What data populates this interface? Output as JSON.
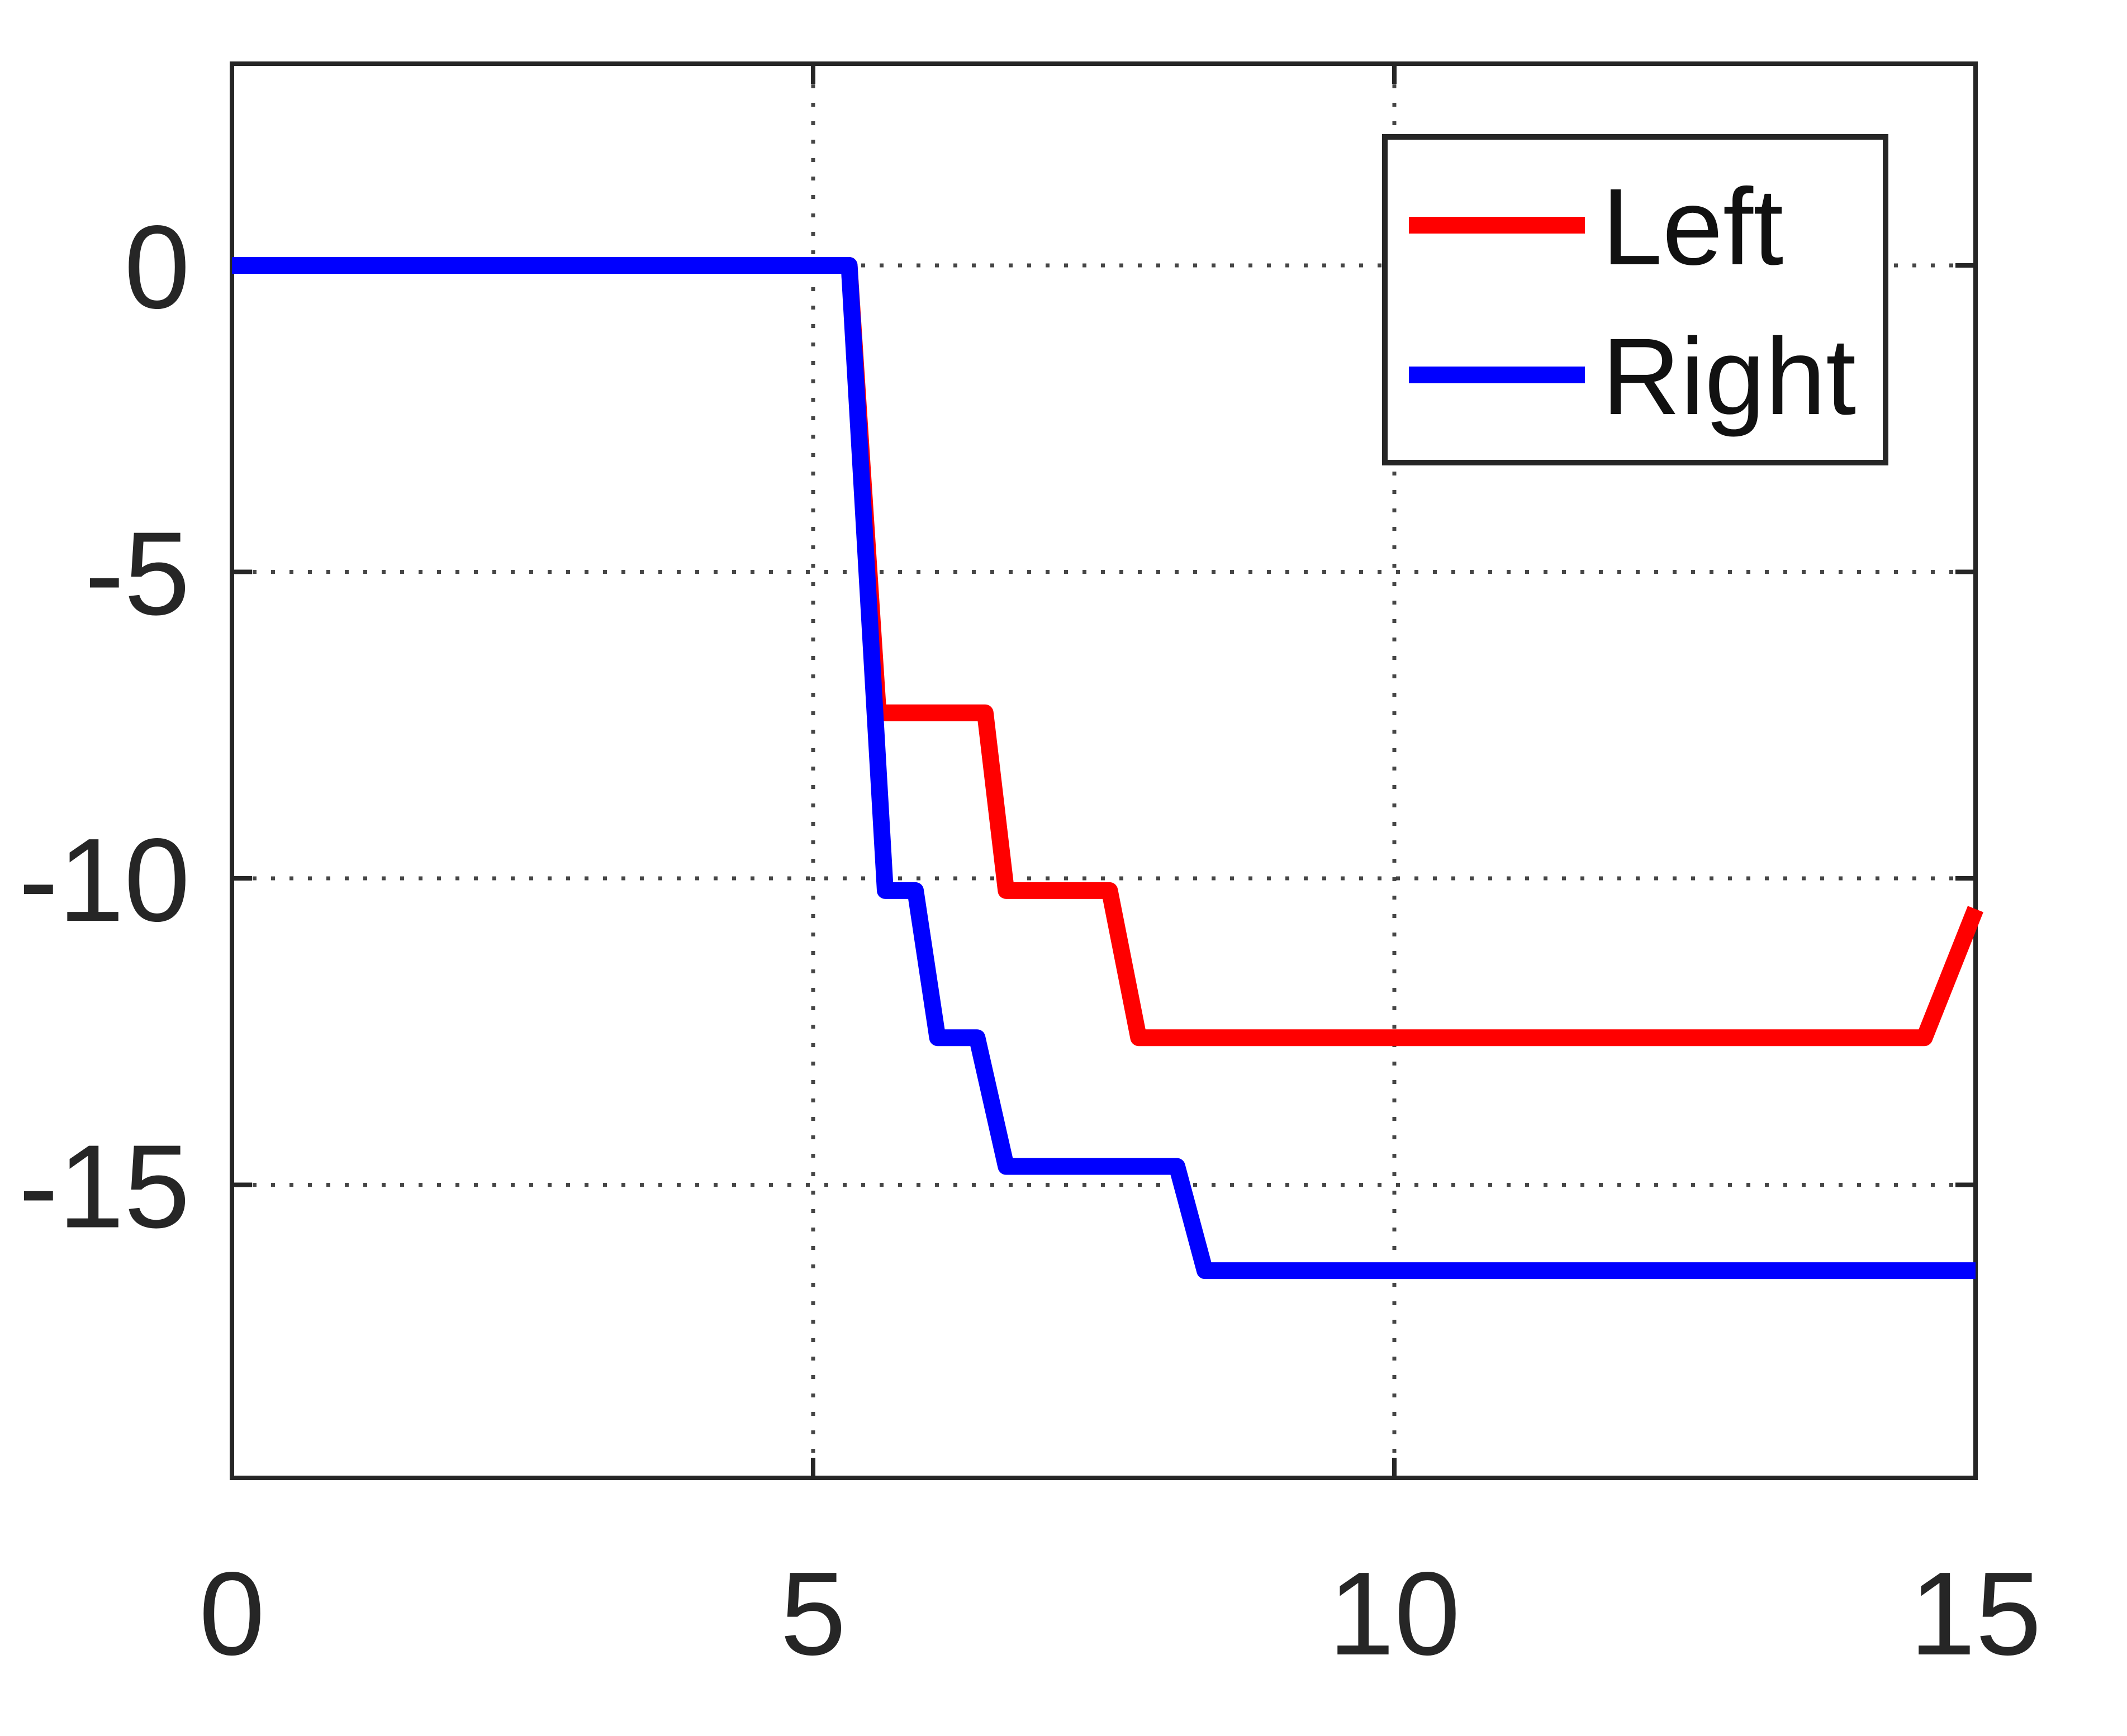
{
  "chart_data": {
    "type": "line",
    "title": "",
    "xlabel": "",
    "ylabel": "",
    "xlim": [
      0,
      15
    ],
    "ylim": [
      -19.8,
      3.3
    ],
    "grid": "dotted",
    "x_ticks": [
      0,
      5,
      10,
      15
    ],
    "y_ticks": [
      0,
      -5,
      -10,
      -15
    ],
    "x_tick_labels": [
      "0",
      "5",
      "10",
      "15"
    ],
    "y_tick_labels": [
      "0",
      "-5",
      "-10",
      "-15"
    ],
    "legend": {
      "position": "northeast",
      "entries": [
        {
          "label": "Left",
          "color": "#ff0000"
        },
        {
          "label": "Right",
          "color": "#0000ff"
        }
      ]
    },
    "series": [
      {
        "name": "Left",
        "color": "#ff0000",
        "points": [
          [
            0,
            0
          ],
          [
            5.31,
            0
          ],
          [
            5.56,
            -7.3
          ],
          [
            6.48,
            -7.3
          ],
          [
            6.66,
            -10.2
          ],
          [
            7.55,
            -10.2
          ],
          [
            7.8,
            -12.6
          ],
          [
            14.56,
            -12.6
          ],
          [
            15,
            -10.5
          ]
        ]
      },
      {
        "name": "Right",
        "color": "#0000ff",
        "points": [
          [
            0,
            0
          ],
          [
            5.31,
            0
          ],
          [
            5.62,
            -10.2
          ],
          [
            5.88,
            -10.2
          ],
          [
            6.07,
            -12.6
          ],
          [
            6.41,
            -12.6
          ],
          [
            6.66,
            -14.7
          ],
          [
            8.13,
            -14.7
          ],
          [
            8.37,
            -16.4
          ],
          [
            15,
            -16.4
          ]
        ]
      }
    ]
  }
}
